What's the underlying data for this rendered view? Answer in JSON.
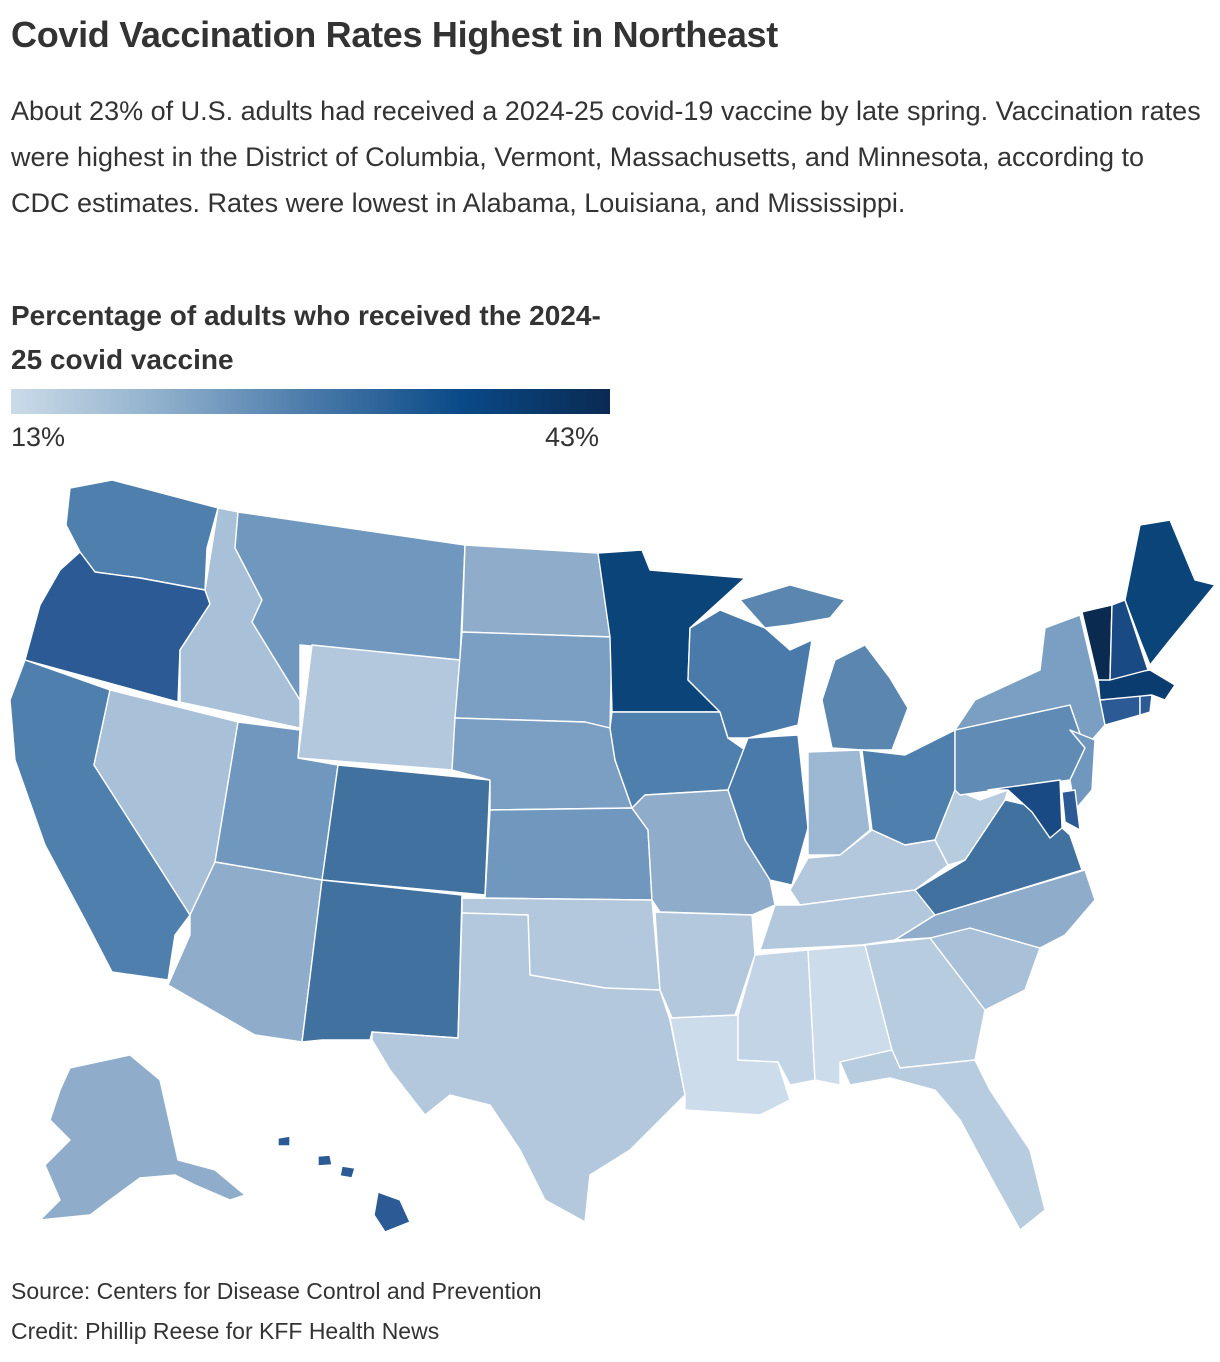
{
  "title": "Covid Vaccination Rates Highest in Northeast",
  "subtitle": "About 23% of U.S. adults had received a 2024-25 covid-19 vaccine by late spring. Vaccination rates were highest in the District of Columbia, Vermont, Massachusetts, and Minnesota, according to CDC estimates. Rates were lowest in Alabama, Louisiana, and Mississippi.",
  "legend": {
    "title": "Percentage of adults who received the 2024-25 covid vaccine",
    "min_label": "13%",
    "max_label": "43%",
    "min_value": 13,
    "max_value": 43,
    "color_stops": [
      "#cbdbe8",
      "#8fb0cc",
      "#4a7aaa",
      "#0a4a88",
      "#0a2a52"
    ]
  },
  "map": {
    "states": [
      {
        "id": "WA",
        "color": "#4f7fac"
      },
      {
        "id": "OR",
        "color": "#2b5a94"
      },
      {
        "id": "CA",
        "color": "#4f7fac"
      },
      {
        "id": "ID",
        "color": "#a8c0d8"
      },
      {
        "id": "NV",
        "color": "#a8c0d8"
      },
      {
        "id": "MT",
        "color": "#7098bf"
      },
      {
        "id": "WY",
        "color": "#b3c8dc"
      },
      {
        "id": "UT",
        "color": "#7098bf"
      },
      {
        "id": "AZ",
        "color": "#8fadca"
      },
      {
        "id": "CO",
        "color": "#41719f"
      },
      {
        "id": "NM",
        "color": "#41719f"
      },
      {
        "id": "ND",
        "color": "#8fadca"
      },
      {
        "id": "SD",
        "color": "#7a9fc3"
      },
      {
        "id": "NE",
        "color": "#7a9fc3"
      },
      {
        "id": "KS",
        "color": "#7098bf"
      },
      {
        "id": "OK",
        "color": "#b3c8dc"
      },
      {
        "id": "TX",
        "color": "#b3c8dc"
      },
      {
        "id": "MN",
        "color": "#0a4478"
      },
      {
        "id": "IA",
        "color": "#4f7fac"
      },
      {
        "id": "MO",
        "color": "#8fadca"
      },
      {
        "id": "AR",
        "color": "#b3c8dc"
      },
      {
        "id": "LA",
        "color": "#cddcea"
      },
      {
        "id": "WI",
        "color": "#4a7aaa"
      },
      {
        "id": "IL",
        "color": "#4a7aaa"
      },
      {
        "id": "MI",
        "color": "#5a86b0"
      },
      {
        "id": "IN",
        "color": "#9db8d3"
      },
      {
        "id": "OH",
        "color": "#4f7fac"
      },
      {
        "id": "KY",
        "color": "#b3c8dc"
      },
      {
        "id": "TN",
        "color": "#b3c8dc"
      },
      {
        "id": "MS",
        "color": "#c3d4e6"
      },
      {
        "id": "AL",
        "color": "#cddcea"
      },
      {
        "id": "GA",
        "color": "#b8cce0"
      },
      {
        "id": "FL",
        "color": "#b8cce0"
      },
      {
        "id": "SC",
        "color": "#a8c0d8"
      },
      {
        "id": "NC",
        "color": "#8fadca"
      },
      {
        "id": "VA",
        "color": "#41719f"
      },
      {
        "id": "WV",
        "color": "#b8cce0"
      },
      {
        "id": "PA",
        "color": "#5f8bb5"
      },
      {
        "id": "NY",
        "color": "#7a9fc3"
      },
      {
        "id": "NJ",
        "color": "#7098bf"
      },
      {
        "id": "DE",
        "color": "#2b5a94"
      },
      {
        "id": "MD",
        "color": "#1a4a84"
      },
      {
        "id": "CT",
        "color": "#2b5a94"
      },
      {
        "id": "RI",
        "color": "#2b5a94"
      },
      {
        "id": "MA",
        "color": "#0a3c70"
      },
      {
        "id": "VT",
        "color": "#0a2a50"
      },
      {
        "id": "NH",
        "color": "#1a4a84"
      },
      {
        "id": "ME",
        "color": "#0a4478"
      },
      {
        "id": "AK",
        "color": "#8fadca"
      },
      {
        "id": "HI",
        "color": "#2b5a94"
      }
    ]
  },
  "source": "Source: Centers for Disease Control and Prevention",
  "credit": "Credit: Phillip Reese for KFF Health News"
}
